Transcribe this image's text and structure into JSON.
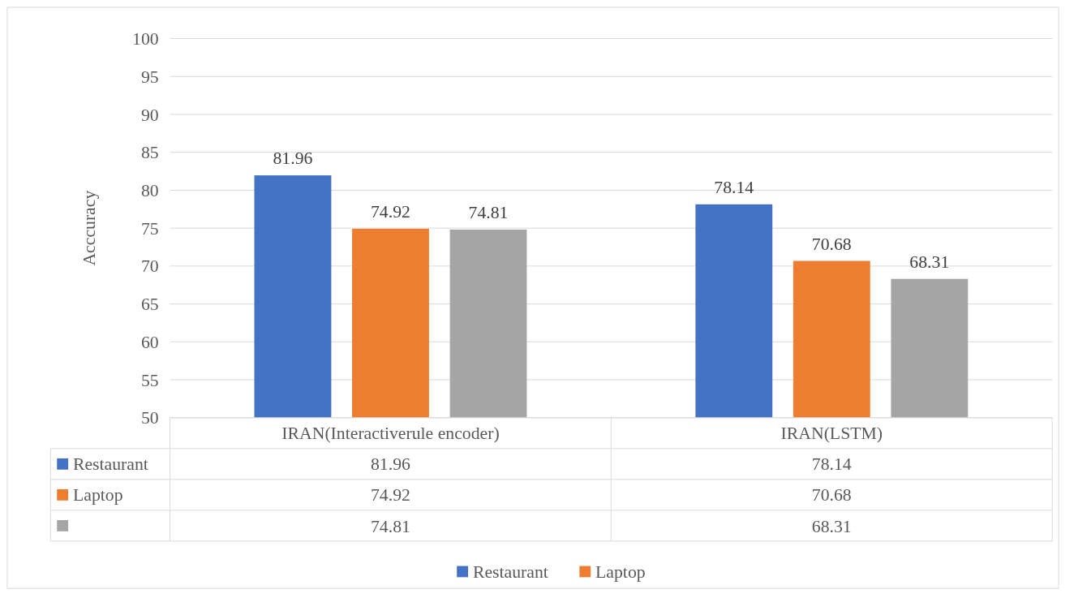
{
  "chart_data": {
    "type": "bar",
    "ylabel": "Acccuracy",
    "categories": [
      "IRAN(Interactiverule encoder)",
      "IRAN(LSTM)"
    ],
    "series": [
      {
        "name": "Restaurant",
        "color": "#4472c4",
        "values": [
          81.96,
          78.14
        ],
        "value_labels": [
          "81.96",
          "78.14"
        ]
      },
      {
        "name": "Laptop",
        "color": "#ed7d31",
        "values": [
          74.92,
          70.68
        ],
        "value_labels": [
          "74.92",
          "70.68"
        ]
      },
      {
        "color": "#a5a5a5",
        "values": [
          74.81,
          68.31
        ],
        "value_labels": [
          "74.81",
          "68.31"
        ]
      }
    ],
    "annotations": [
      "81.96",
      "78.14",
      "74.92",
      "70.68",
      "74.81",
      "68.31"
    ],
    "ylim": [
      50,
      100
    ],
    "yticks": [
      50,
      55,
      60,
      65,
      70,
      75,
      80,
      85,
      90,
      95,
      100
    ],
    "grid": "y",
    "legend": "bottom"
  }
}
